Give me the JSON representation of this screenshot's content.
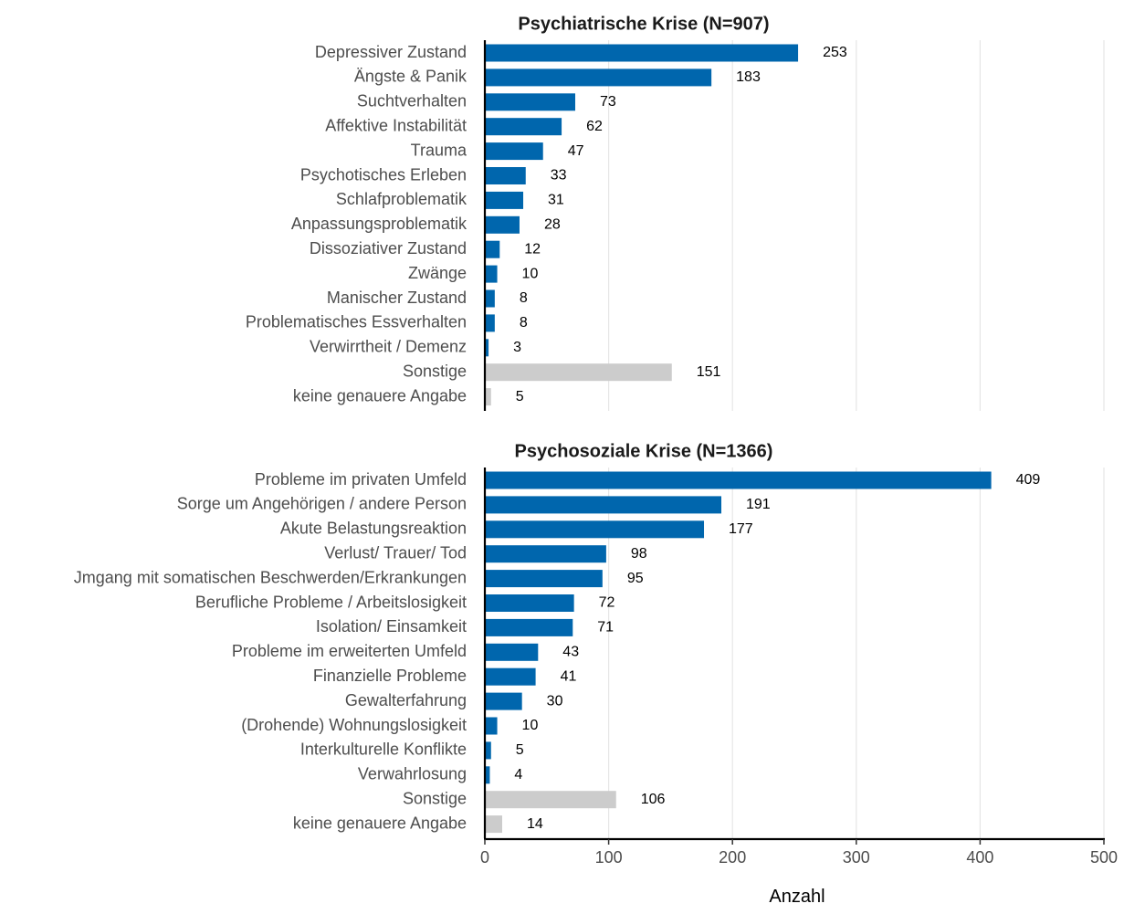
{
  "chart_data": {
    "type": "bar",
    "orientation": "horizontal",
    "xlabel": "Anzahl",
    "xlim": [
      0,
      500
    ],
    "xticks": [
      0,
      100,
      200,
      300,
      400,
      500
    ],
    "grid": "vertical",
    "colors": {
      "main": "#0066ad",
      "other": "#cccccc"
    },
    "panels": [
      {
        "title": "Psychiatrische Krise (N=907)",
        "categories": [
          "Depressiver Zustand",
          "Ängste & Panik",
          "Suchtverhalten",
          "Affektive Instabilität",
          "Trauma",
          "Psychotisches Erleben",
          "Schlafproblematik",
          "Anpassungsproblematik",
          "Dissoziativer Zustand",
          "Zwänge",
          "Manischer Zustand",
          "Problematisches Essverhalten",
          "Verwirrtheit / Demenz",
          "Sonstige",
          "keine genauere Angabe"
        ],
        "values": [
          253,
          183,
          73,
          62,
          47,
          33,
          31,
          28,
          12,
          10,
          8,
          8,
          3,
          151,
          5
        ],
        "highlight": [
          "main",
          "main",
          "main",
          "main",
          "main",
          "main",
          "main",
          "main",
          "main",
          "main",
          "main",
          "main",
          "main",
          "other",
          "other"
        ]
      },
      {
        "title": "Psychosoziale Krise (N=1366)",
        "categories": [
          "Probleme im privaten Umfeld",
          "Sorge um Angehörigen / andere Person",
          "Akute Belastungsreaktion",
          "Verlust/ Trauer/ Tod",
          "Jmgang mit somatischen Beschwerden/Erkrankungen",
          "Berufliche Probleme / Arbeitslosigkeit",
          "Isolation/ Einsamkeit",
          "Probleme im erweiterten Umfeld",
          "Finanzielle Probleme",
          "Gewalterfahrung",
          "(Drohende) Wohnungslosigkeit",
          "Interkulturelle Konflikte",
          "Verwahrlosung",
          "Sonstige",
          "keine genauere Angabe"
        ],
        "values": [
          409,
          191,
          177,
          98,
          95,
          72,
          71,
          43,
          41,
          30,
          10,
          5,
          4,
          106,
          14
        ],
        "highlight": [
          "main",
          "main",
          "main",
          "main",
          "main",
          "main",
          "main",
          "main",
          "main",
          "main",
          "main",
          "main",
          "main",
          "other",
          "other"
        ]
      }
    ]
  }
}
